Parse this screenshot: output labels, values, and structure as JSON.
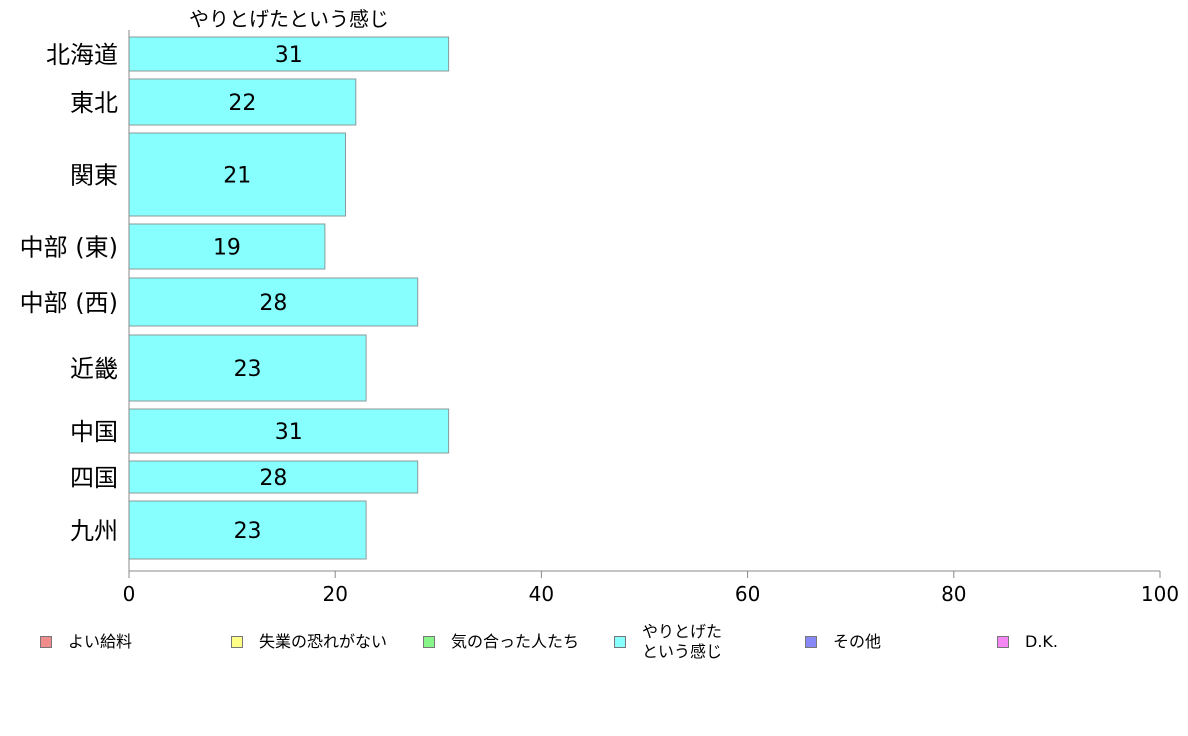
{
  "chart_data": {
    "type": "bar",
    "orientation": "horizontal",
    "title": "やりとげたという感じ",
    "categories": [
      "北海道",
      "東北",
      "関東",
      "中部 (東)",
      "中部 (西)",
      "近畿",
      "中国",
      "四国",
      "九州"
    ],
    "series": [
      {
        "name": "やりとげたという感じ",
        "values": [
          31,
          22,
          21,
          19,
          28,
          23,
          31,
          28,
          23
        ]
      }
    ],
    "value_labels": [
      "31",
      "22",
      "21",
      "19",
      "28",
      "23",
      "31",
      "28",
      "23"
    ],
    "xlim": [
      0,
      100
    ],
    "xticks": [
      "0",
      "20",
      "40",
      "60",
      "80",
      "100"
    ],
    "bar_color": "#87FFFF",
    "grid": false,
    "legend_position": "bottom"
  },
  "legend": {
    "items": [
      {
        "label": "よい給料",
        "color": "#F08C8C"
      },
      {
        "label": "失業の恐れがない",
        "color": "#FFFF87"
      },
      {
        "label": "気の合った人たち",
        "color": "#87F587"
      },
      {
        "label": "やりとげた\nという感じ",
        "color": "#87FFFF"
      },
      {
        "label": "その他",
        "color": "#8787F5"
      },
      {
        "label": "D.K.",
        "color": "#F587F5"
      }
    ]
  }
}
